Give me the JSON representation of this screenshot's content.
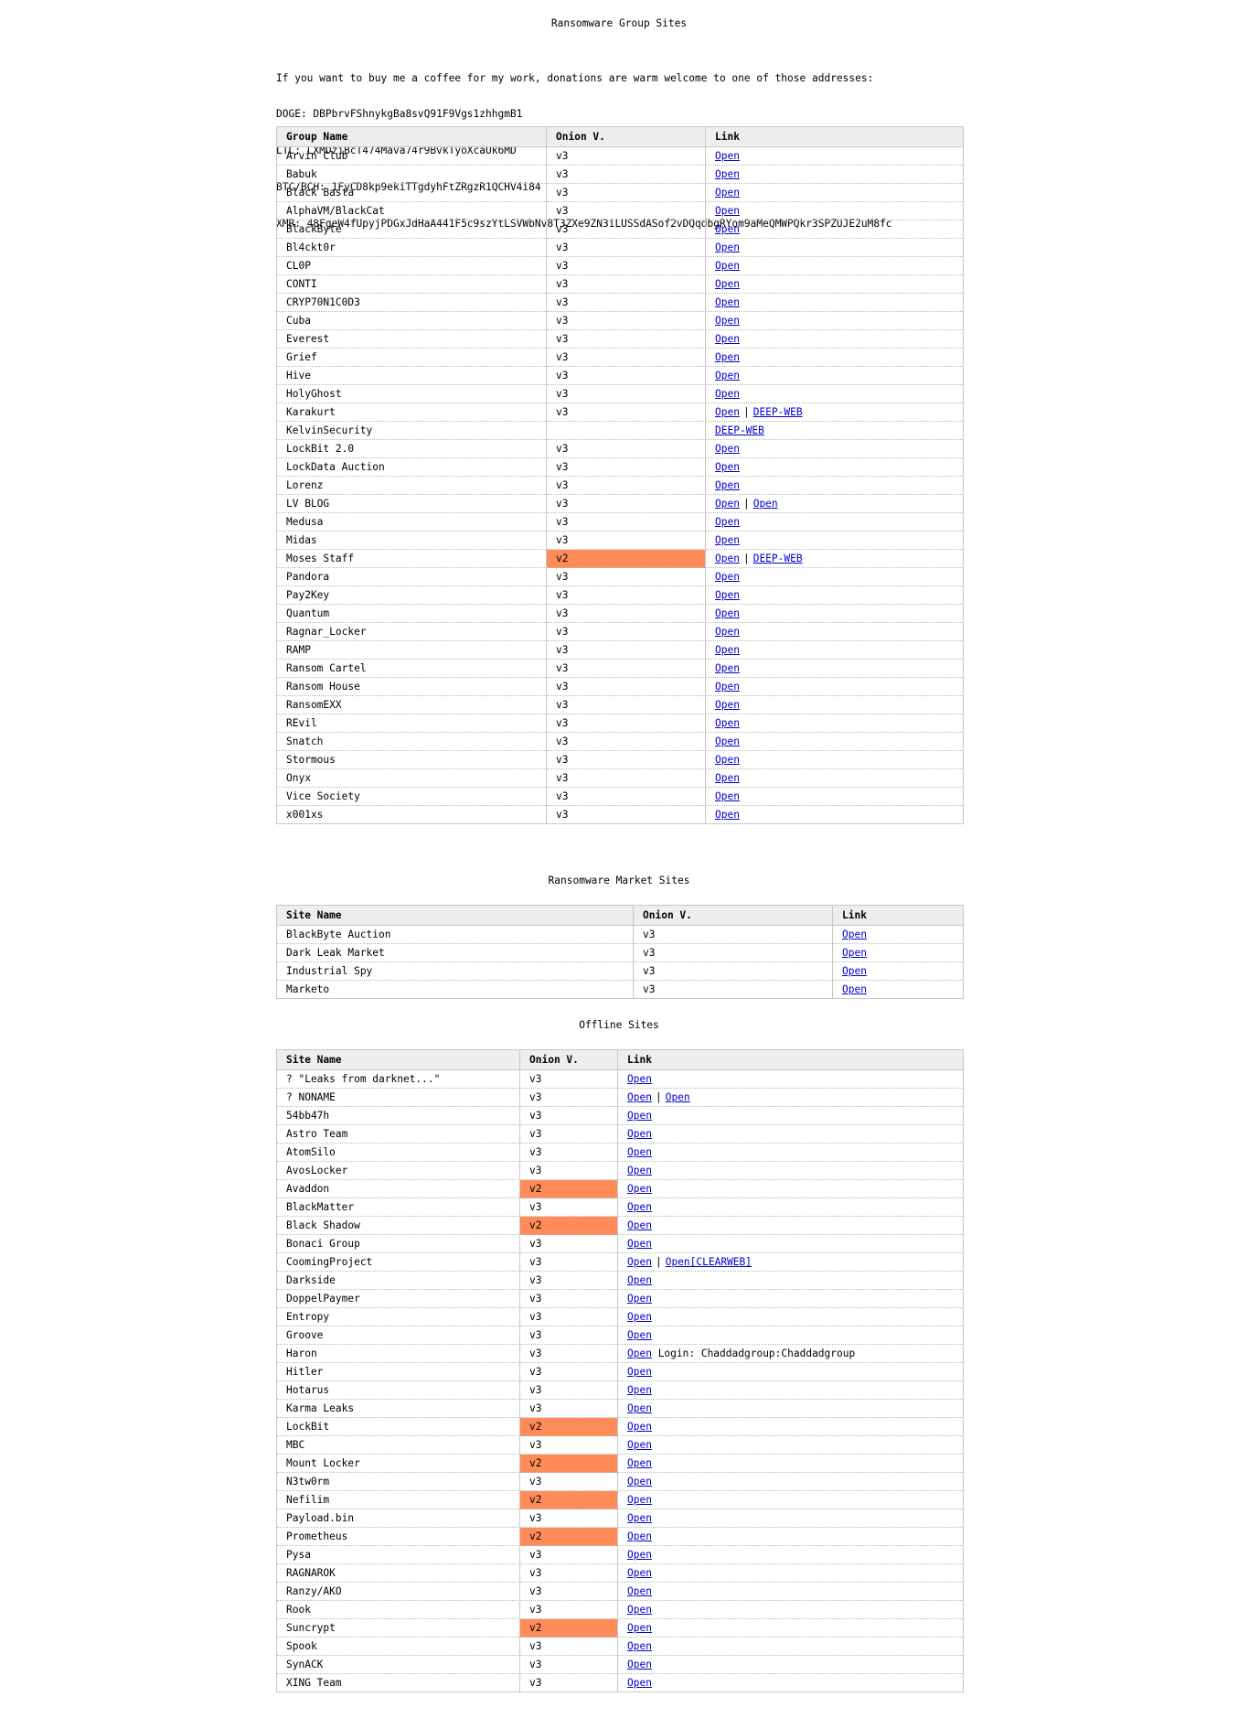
{
  "groups_title": "Ransomware Group Sites",
  "donation": {
    "intro": "If you want to buy me a coffee for my work, donations are warm welcome to one of those addresses:",
    "lines": [
      "DOGE: DBPbrvFShnykgBa8svQ91F9Vgs1zhhgmB1",
      "LTC: LXMDziBcT474Mava74r9BvkTyoXcaUk6MD",
      "BTC/BCH: 1FyCD8kp9ekiTTgdyhFtZRgzR1QCHV4i84",
      "XMR: 48FgeW4fUpyjPDGxJdHaA441F5c9szYtLSVWbNv8T3ZXe9ZN3iLUSSdASof2vDQqdbgRYom9aMeQMWPQkr3SPZUJE2uM8fc"
    ]
  },
  "groups_table": {
    "headers": [
      "Group Name",
      "Onion V.",
      "Link"
    ],
    "rows": [
      {
        "name": "Arvin Club",
        "ver": "v3",
        "links": [
          "Open"
        ]
      },
      {
        "name": "Babuk",
        "ver": "v3",
        "links": [
          "Open"
        ]
      },
      {
        "name": "Black Basta",
        "ver": "v3",
        "links": [
          "Open"
        ]
      },
      {
        "name": "AlphaVM/BlackCat",
        "ver": "v3",
        "links": [
          "Open"
        ]
      },
      {
        "name": "BlackByte",
        "ver": "v3",
        "links": [
          "Open"
        ]
      },
      {
        "name": "Bl4ckt0r",
        "ver": "v3",
        "links": [
          "Open"
        ]
      },
      {
        "name": "CL0P",
        "ver": "v3",
        "links": [
          "Open"
        ]
      },
      {
        "name": "CONTI",
        "ver": "v3",
        "links": [
          "Open"
        ]
      },
      {
        "name": "CRYP70N1C0D3",
        "ver": "v3",
        "links": [
          "Open"
        ]
      },
      {
        "name": "Cuba",
        "ver": "v3",
        "links": [
          "Open"
        ]
      },
      {
        "name": "Everest",
        "ver": "v3",
        "links": [
          "Open"
        ]
      },
      {
        "name": "Grief",
        "ver": "v3",
        "links": [
          "Open"
        ]
      },
      {
        "name": "Hive",
        "ver": "v3",
        "links": [
          "Open"
        ]
      },
      {
        "name": "HolyGhost",
        "ver": "v3",
        "links": [
          "Open"
        ]
      },
      {
        "name": "Karakurt",
        "ver": "v3",
        "links": [
          "Open",
          "DEEP-WEB"
        ]
      },
      {
        "name": "KelvinSecurity",
        "ver": "",
        "links": [
          "DEEP-WEB"
        ]
      },
      {
        "name": "LockBit 2.0",
        "ver": "v3",
        "links": [
          "Open"
        ]
      },
      {
        "name": "LockData Auction",
        "ver": "v3",
        "links": [
          "Open"
        ]
      },
      {
        "name": "Lorenz",
        "ver": "v3",
        "links": [
          "Open"
        ]
      },
      {
        "name": "LV BLOG",
        "ver": "v3",
        "links": [
          "Open",
          "Open"
        ]
      },
      {
        "name": "Medusa",
        "ver": "v3",
        "links": [
          "Open"
        ]
      },
      {
        "name": "Midas",
        "ver": "v3",
        "links": [
          "Open"
        ]
      },
      {
        "name": "Moses Staff",
        "ver": "v2",
        "links": [
          "Open",
          "DEEP-WEB"
        ]
      },
      {
        "name": "Pandora",
        "ver": "v3",
        "links": [
          "Open"
        ]
      },
      {
        "name": "Pay2Key",
        "ver": "v3",
        "links": [
          "Open"
        ]
      },
      {
        "name": "Quantum",
        "ver": "v3",
        "links": [
          "Open"
        ]
      },
      {
        "name": "Ragnar_Locker",
        "ver": "v3",
        "links": [
          "Open"
        ]
      },
      {
        "name": "RAMP",
        "ver": "v3",
        "links": [
          "Open"
        ]
      },
      {
        "name": "Ransom Cartel",
        "ver": "v3",
        "links": [
          "Open"
        ]
      },
      {
        "name": "Ransom House",
        "ver": "v3",
        "links": [
          "Open"
        ]
      },
      {
        "name": "RansomEXX",
        "ver": "v3",
        "links": [
          "Open"
        ]
      },
      {
        "name": "REvil",
        "ver": "v3",
        "links": [
          "Open"
        ]
      },
      {
        "name": "Snatch",
        "ver": "v3",
        "links": [
          "Open"
        ]
      },
      {
        "name": "Stormous",
        "ver": "v3",
        "links": [
          "Open"
        ]
      },
      {
        "name": "Onyx",
        "ver": "v3",
        "links": [
          "Open"
        ]
      },
      {
        "name": "Vice Society",
        "ver": "v3",
        "links": [
          "Open"
        ]
      },
      {
        "name": "x001xs",
        "ver": "v3",
        "links": [
          "Open"
        ]
      }
    ]
  },
  "market_title": "Ransomware Market Sites",
  "market_table": {
    "headers": [
      "Site Name",
      "Onion V.",
      "Link"
    ],
    "rows": [
      {
        "name": "BlackByte Auction",
        "ver": "v3",
        "links": [
          "Open"
        ]
      },
      {
        "name": "Dark Leak Market",
        "ver": "v3",
        "links": [
          "Open"
        ]
      },
      {
        "name": "Industrial Spy",
        "ver": "v3",
        "links": [
          "Open"
        ]
      },
      {
        "name": "Marketo",
        "ver": "v3",
        "links": [
          "Open"
        ]
      }
    ]
  },
  "offline_title": "Offline Sites",
  "offline_table": {
    "headers": [
      "Site Name",
      "Onion V.",
      "Link"
    ],
    "rows": [
      {
        "name": "? \"Leaks from darknet...\"",
        "ver": "v3",
        "links": [
          "Open"
        ]
      },
      {
        "name": "? NONAME",
        "ver": "v3",
        "links": [
          "Open",
          "Open"
        ]
      },
      {
        "name": "54bb47h",
        "ver": "v3",
        "links": [
          "Open"
        ]
      },
      {
        "name": "Astro Team",
        "ver": "v3",
        "links": [
          "Open"
        ]
      },
      {
        "name": "AtomSilo",
        "ver": "v3",
        "links": [
          "Open"
        ]
      },
      {
        "name": "AvosLocker",
        "ver": "v3",
        "links": [
          "Open"
        ]
      },
      {
        "name": "Avaddon",
        "ver": "v2",
        "links": [
          "Open"
        ]
      },
      {
        "name": "BlackMatter",
        "ver": "v3",
        "links": [
          "Open"
        ]
      },
      {
        "name": "Black Shadow",
        "ver": "v2",
        "links": [
          "Open"
        ]
      },
      {
        "name": "Bonaci Group",
        "ver": "v3",
        "links": [
          "Open"
        ]
      },
      {
        "name": "CoomingProject",
        "ver": "v3",
        "links": [
          "Open",
          "Open[CLEARWEB]"
        ]
      },
      {
        "name": "Darkside",
        "ver": "v3",
        "links": [
          "Open"
        ]
      },
      {
        "name": "DoppelPaymer",
        "ver": "v3",
        "links": [
          "Open"
        ]
      },
      {
        "name": "Entropy",
        "ver": "v3",
        "links": [
          "Open"
        ]
      },
      {
        "name": "Groove",
        "ver": "v3",
        "links": [
          "Open"
        ]
      },
      {
        "name": "Haron",
        "ver": "v3",
        "links": [
          "Open"
        ],
        "note": " Login: Chaddadgroup:Chaddadgroup"
      },
      {
        "name": "Hitler",
        "ver": "v3",
        "links": [
          "Open"
        ]
      },
      {
        "name": "Hotarus",
        "ver": "v3",
        "links": [
          "Open"
        ]
      },
      {
        "name": "Karma Leaks",
        "ver": "v3",
        "links": [
          "Open"
        ]
      },
      {
        "name": "LockBit",
        "ver": "v2",
        "links": [
          "Open"
        ]
      },
      {
        "name": "MBC",
        "ver": "v3",
        "links": [
          "Open"
        ]
      },
      {
        "name": "Mount Locker",
        "ver": "v2",
        "links": [
          "Open"
        ]
      },
      {
        "name": "N3tw0rm",
        "ver": "v3",
        "links": [
          "Open"
        ]
      },
      {
        "name": "Nefilim",
        "ver": "v2",
        "links": [
          "Open"
        ]
      },
      {
        "name": "Payload.bin",
        "ver": "v3",
        "links": [
          "Open"
        ]
      },
      {
        "name": "Prometheus",
        "ver": "v2",
        "links": [
          "Open"
        ]
      },
      {
        "name": "Pysa",
        "ver": "v3",
        "links": [
          "Open"
        ]
      },
      {
        "name": "RAGNAROK",
        "ver": "v3",
        "links": [
          "Open"
        ]
      },
      {
        "name": "Ranzy/AKO",
        "ver": "v3",
        "links": [
          "Open"
        ]
      },
      {
        "name": "Rook",
        "ver": "v3",
        "links": [
          "Open"
        ]
      },
      {
        "name": "Suncrypt",
        "ver": "v2",
        "links": [
          "Open"
        ]
      },
      {
        "name": "Spook",
        "ver": "v3",
        "links": [
          "Open"
        ]
      },
      {
        "name": "SynACK",
        "ver": "v3",
        "links": [
          "Open"
        ]
      },
      {
        "name": "XING Team",
        "ver": "v3",
        "links": [
          "Open"
        ]
      }
    ]
  },
  "colors": {
    "v2_highlight": "#ff8c58",
    "link": "#0000cc",
    "header_bg": "#eeeeee"
  },
  "link_separator": "|"
}
